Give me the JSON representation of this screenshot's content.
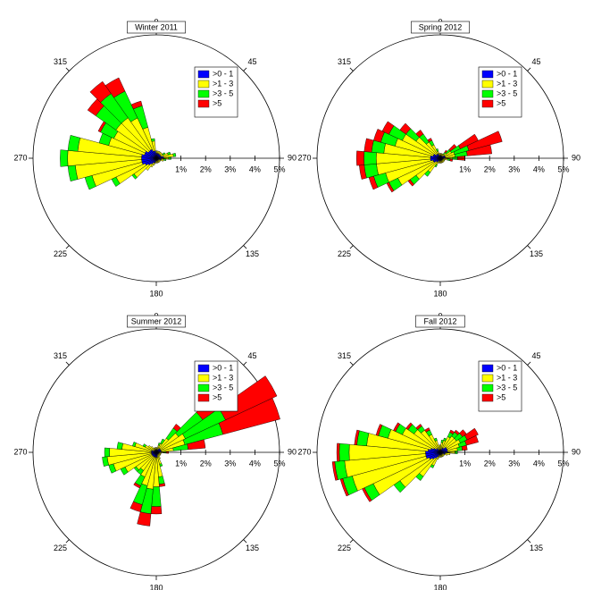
{
  "chart_data": [
    {
      "type": "windrose",
      "title": "Winter 2011",
      "x": [
        0,
        10,
        20,
        30,
        40,
        50,
        60,
        70,
        80,
        90,
        100,
        110,
        120,
        130,
        140,
        150,
        160,
        170,
        180,
        190,
        200,
        210,
        220,
        230,
        240,
        250,
        260,
        270,
        280,
        290,
        300,
        310,
        320,
        330,
        340,
        350
      ],
      "xticks": [
        0,
        45,
        90,
        135,
        180,
        225,
        270,
        315
      ],
      "ylim": [
        0,
        5
      ],
      "yticks": [
        {
          "value": 1,
          "label": "1%"
        },
        {
          "value": 2,
          "label": "2%"
        },
        {
          "value": 3,
          "label": "3%"
        },
        {
          "value": 4,
          "label": "4%"
        },
        {
          "value": 5,
          "label": "5%"
        }
      ],
      "series": [
        {
          "name": ">0 - 1",
          "color": "#0000ff",
          "values": [
            0.2,
            0.2,
            0.2,
            0.2,
            0.2,
            0.2,
            0.2,
            0.2,
            0.3,
            0.3,
            0.2,
            0.2,
            0.1,
            0.1,
            0.1,
            0.1,
            0.1,
            0.1,
            0.1,
            0.1,
            0.2,
            0.2,
            0.3,
            0.4,
            0.5,
            0.6,
            0.6,
            0.6,
            0.6,
            0.5,
            0.5,
            0.4,
            0.4,
            0.4,
            0.3,
            0.3
          ]
        },
        {
          "name": ">1 - 3",
          "color": "#ffff00",
          "values": [
            0.1,
            0.1,
            0.1,
            0.1,
            0.1,
            0.1,
            0.1,
            0.3,
            0.4,
            0.2,
            0.1,
            0.1,
            0.1,
            0.1,
            0.1,
            0.1,
            0.1,
            0.1,
            0.1,
            0.1,
            0.1,
            0.2,
            0.3,
            0.7,
            1.3,
            2.1,
            2.7,
            3.0,
            2.6,
            1.5,
            1.4,
            1.6,
            1.6,
            1.4,
            1.0,
            0.4
          ]
        },
        {
          "name": ">3 - 5",
          "color": "#00ff00",
          "values": [
            0,
            0,
            0,
            0,
            0,
            0,
            0.1,
            0.1,
            0.1,
            0.1,
            0.1,
            0,
            0,
            0,
            0,
            0,
            0,
            0,
            0,
            0,
            0,
            0,
            0,
            0.1,
            0.2,
            0.3,
            0.3,
            0.3,
            0.4,
            0.4,
            0.6,
            1.0,
            1.2,
            1.2,
            0.9,
            0.1
          ]
        },
        {
          "name": ">5",
          "color": "#ff0000",
          "values": [
            0,
            0,
            0,
            0,
            0,
            0,
            0,
            0,
            0,
            0,
            0,
            0,
            0,
            0,
            0,
            0,
            0,
            0,
            0,
            0,
            0,
            0,
            0,
            0,
            0,
            0,
            0,
            0,
            0,
            0,
            0.1,
            0.4,
            0.6,
            0.6,
            0.2,
            0
          ]
        }
      ]
    },
    {
      "type": "windrose",
      "title": "Spring 2012",
      "x": [
        0,
        10,
        20,
        30,
        40,
        50,
        60,
        70,
        80,
        90,
        100,
        110,
        120,
        130,
        140,
        150,
        160,
        170,
        180,
        190,
        200,
        210,
        220,
        230,
        240,
        250,
        260,
        270,
        280,
        290,
        300,
        310,
        320,
        330,
        340,
        350
      ],
      "xticks": [
        0,
        45,
        90,
        135,
        180,
        225,
        270,
        315
      ],
      "ylim": [
        0,
        5
      ],
      "yticks": [
        {
          "value": 1,
          "label": "1%"
        },
        {
          "value": 2,
          "label": "2%"
        },
        {
          "value": 3,
          "label": "3%"
        },
        {
          "value": 4,
          "label": "4%"
        },
        {
          "value": 5,
          "label": "5%"
        }
      ],
      "series": [
        {
          "name": ">0 - 1",
          "color": "#0000ff",
          "values": [
            0.1,
            0.1,
            0.1,
            0.1,
            0.1,
            0.1,
            0.2,
            0.2,
            0.2,
            0.2,
            0.1,
            0.1,
            0.1,
            0.1,
            0.1,
            0.1,
            0.1,
            0.1,
            0.1,
            0.1,
            0.1,
            0.1,
            0.2,
            0.2,
            0.3,
            0.3,
            0.4,
            0.4,
            0.4,
            0.3,
            0.3,
            0.2,
            0.2,
            0.2,
            0.1,
            0.1
          ]
        },
        {
          "name": ">1 - 3",
          "color": "#ffff00",
          "values": [
            0.1,
            0.1,
            0.1,
            0.1,
            0.1,
            0.2,
            0.3,
            0.4,
            0.4,
            0.3,
            0.2,
            0.1,
            0.1,
            0.1,
            0.1,
            0.1,
            0.1,
            0.1,
            0.1,
            0.1,
            0.1,
            0.2,
            0.5,
            1.0,
            1.6,
            2.0,
            2.2,
            2.2,
            1.9,
            1.6,
            1.4,
            1.0,
            0.6,
            0.4,
            0.2,
            0.1
          ]
        },
        {
          "name": ">3 - 5",
          "color": "#00ff00",
          "values": [
            0,
            0,
            0,
            0,
            0.1,
            0.2,
            0.4,
            0.6,
            0.5,
            0.2,
            0.1,
            0,
            0,
            0,
            0,
            0,
            0,
            0,
            0,
            0,
            0,
            0.1,
            0.2,
            0.3,
            0.4,
            0.5,
            0.5,
            0.5,
            0.5,
            0.6,
            0.6,
            0.5,
            0.4,
            0.2,
            0.1,
            0
          ]
        },
        {
          "name": ">5",
          "color": "#ff0000",
          "values": [
            0,
            0,
            0,
            0,
            0.1,
            0.3,
            0.8,
            1.4,
            1.0,
            0.3,
            0.1,
            0,
            0,
            0,
            0,
            0,
            0,
            0,
            0,
            0,
            0,
            0,
            0,
            0.1,
            0.1,
            0.2,
            0.2,
            0.3,
            0.3,
            0.3,
            0.3,
            0.3,
            0.2,
            0.1,
            0,
            0
          ]
        }
      ]
    },
    {
      "type": "windrose",
      "title": "Summer 2012",
      "x": [
        0,
        10,
        20,
        30,
        40,
        50,
        60,
        70,
        80,
        90,
        100,
        110,
        120,
        130,
        140,
        150,
        160,
        170,
        180,
        190,
        200,
        210,
        220,
        230,
        240,
        250,
        260,
        270,
        280,
        290,
        300,
        310,
        320,
        330,
        340,
        350
      ],
      "xticks": [
        0,
        45,
        90,
        135,
        180,
        225,
        270,
        315
      ],
      "ylim": [
        0,
        5
      ],
      "yticks": [
        {
          "value": 1,
          "label": "1%"
        },
        {
          "value": 2,
          "label": "2%"
        },
        {
          "value": 3,
          "label": "3%"
        },
        {
          "value": 4,
          "label": "4%"
        },
        {
          "value": 5,
          "label": "5%"
        }
      ],
      "series": [
        {
          "name": ">0 - 1",
          "color": "#0000ff",
          "values": [
            0.1,
            0.1,
            0.1,
            0.1,
            0.2,
            0.2,
            0.2,
            0.2,
            0.2,
            0.1,
            0.1,
            0.1,
            0.1,
            0.1,
            0.1,
            0.1,
            0.1,
            0.2,
            0.2,
            0.2,
            0.2,
            0.2,
            0.2,
            0.2,
            0.2,
            0.2,
            0.2,
            0.2,
            0.2,
            0.2,
            0.1,
            0.1,
            0.1,
            0.1,
            0.1,
            0.1
          ]
        },
        {
          "name": ">1 - 3",
          "color": "#ffff00",
          "values": [
            0.1,
            0.1,
            0.2,
            0.3,
            0.5,
            0.9,
            1.1,
            1.0,
            0.5,
            0.2,
            0.1,
            0.1,
            0.1,
            0.1,
            0.1,
            0.2,
            0.4,
            0.8,
            1.2,
            1.3,
            1.2,
            0.9,
            0.7,
            0.8,
            1.2,
            1.6,
            1.8,
            1.7,
            1.2,
            0.7,
            0.4,
            0.3,
            0.2,
            0.1,
            0.1,
            0.1
          ]
        },
        {
          "name": ">3 - 5",
          "color": "#00ff00",
          "values": [
            0,
            0,
            0.1,
            0.2,
            0.5,
            1.2,
            1.8,
            1.6,
            0.6,
            0.1,
            0,
            0,
            0,
            0,
            0,
            0,
            0.1,
            0.3,
            0.8,
            1.0,
            0.8,
            0.4,
            0.2,
            0.1,
            0.2,
            0.2,
            0.2,
            0.2,
            0.2,
            0.1,
            0.1,
            0,
            0,
            0,
            0,
            0
          ]
        },
        {
          "name": ">5",
          "color": "#ff0000",
          "values": [
            0,
            0,
            0,
            0,
            0.2,
            0.8,
            2.3,
            2.4,
            0.7,
            0.1,
            0,
            0,
            0,
            0,
            0,
            0,
            0,
            0.1,
            0.3,
            0.5,
            0.3,
            0.1,
            0,
            0,
            0,
            0,
            0,
            0,
            0,
            0,
            0,
            0,
            0,
            0,
            0,
            0
          ]
        }
      ]
    },
    {
      "type": "windrose",
      "title": "Fall 2012",
      "x": [
        0,
        10,
        20,
        30,
        40,
        50,
        60,
        70,
        80,
        90,
        100,
        110,
        120,
        130,
        140,
        150,
        160,
        170,
        180,
        190,
        200,
        210,
        220,
        230,
        240,
        250,
        260,
        270,
        280,
        290,
        300,
        310,
        320,
        330,
        340,
        350
      ],
      "xticks": [
        0,
        45,
        90,
        135,
        180,
        225,
        270,
        315
      ],
      "ylim": [
        0,
        5
      ],
      "yticks": [
        {
          "value": 1,
          "label": "1%"
        },
        {
          "value": 2,
          "label": "2%"
        },
        {
          "value": 3,
          "label": "3%"
        },
        {
          "value": 4,
          "label": "4%"
        },
        {
          "value": 5,
          "label": "5%"
        }
      ],
      "series": [
        {
          "name": ">0 - 1",
          "color": "#0000ff",
          "values": [
            0.1,
            0.1,
            0.1,
            0.2,
            0.2,
            0.3,
            0.3,
            0.3,
            0.3,
            0.3,
            0.2,
            0.2,
            0.1,
            0.1,
            0.1,
            0.1,
            0.1,
            0.1,
            0.1,
            0.1,
            0.1,
            0.2,
            0.3,
            0.4,
            0.5,
            0.6,
            0.6,
            0.6,
            0.5,
            0.4,
            0.3,
            0.2,
            0.2,
            0.1,
            0.1,
            0.1
          ]
        },
        {
          "name": ">1 - 3",
          "color": "#ffff00",
          "values": [
            0.2,
            0.3,
            0.4,
            0.5,
            0.6,
            0.5,
            0.6,
            0.5,
            0.4,
            0.3,
            0.2,
            0.1,
            0.1,
            0.1,
            0.1,
            0.1,
            0.1,
            0.1,
            0.1,
            0.1,
            0.2,
            0.4,
            0.9,
            1.6,
            2.5,
            3.1,
            3.3,
            3.1,
            2.5,
            1.8,
            1.4,
            1.1,
            0.9,
            0.7,
            0.4,
            0.2
          ]
        },
        {
          "name": ">3 - 5",
          "color": "#00ff00",
          "values": [
            0,
            0.1,
            0.1,
            0.2,
            0.2,
            0.3,
            0.3,
            0.3,
            0.2,
            0.1,
            0,
            0,
            0,
            0,
            0,
            0,
            0,
            0,
            0,
            0,
            0,
            0.1,
            0.2,
            0.3,
            0.4,
            0.4,
            0.4,
            0.4,
            0.4,
            0.4,
            0.3,
            0.3,
            0.2,
            0.2,
            0.1,
            0
          ]
        },
        {
          "name": ">5",
          "color": "#ff0000",
          "values": [
            0,
            0,
            0,
            0.1,
            0.1,
            0.2,
            0.5,
            0.5,
            0.2,
            0,
            0,
            0,
            0,
            0,
            0,
            0,
            0,
            0,
            0,
            0,
            0,
            0,
            0,
            0,
            0.1,
            0.1,
            0.1,
            0.1,
            0.1,
            0.1,
            0.1,
            0.1,
            0.1,
            0.1,
            0,
            0
          ]
        }
      ]
    }
  ]
}
